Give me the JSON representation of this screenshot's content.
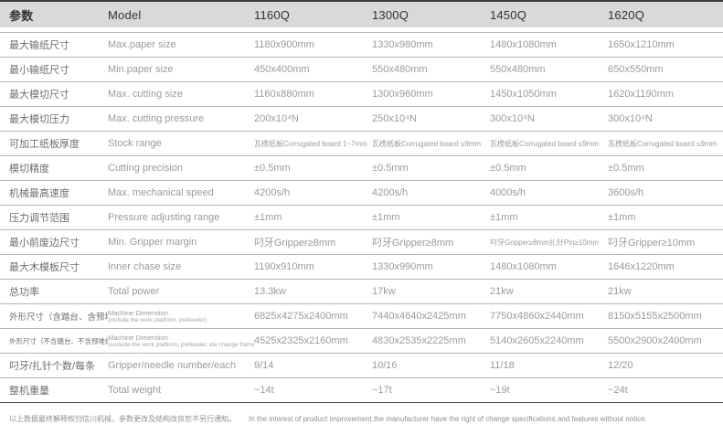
{
  "table": {
    "header": [
      "参数",
      "Model",
      "1160Q",
      "1300Q",
      "1450Q",
      "1620Q"
    ],
    "rows": [
      {
        "param": "最大输纸尺寸",
        "model": "Max.paper size",
        "values": [
          "1180x900mm",
          "1330x980mm",
          "1480x1080mm",
          "1650x1210mm"
        ]
      },
      {
        "param": "最小输纸尺寸",
        "model": "Min.paper size",
        "values": [
          "450x400mm",
          "550x480mm",
          "550x480mm",
          "650x550mm"
        ]
      },
      {
        "param": "最大模切尺寸",
        "model": "Max. cutting size",
        "values": [
          "1160x880mm",
          "1300x960mm",
          "1450x1050mm",
          "1620x1190mm"
        ]
      },
      {
        "param": "最大模切压力",
        "model": "Max. cutting pressure",
        "values": [
          "200x10⁴N",
          "250x10⁴N",
          "300x10⁴N",
          "300x10⁴N"
        ]
      },
      {
        "param": "可加工纸板厚度",
        "model": "Stock range",
        "values": [
          "瓦楞纸板Corrugated board 1~7mm",
          "瓦楞纸板Corrugated board ≤9mm",
          "瓦楞纸板Corrugated board ≤9mm",
          "瓦楞纸板Corrugated board ≤9mm"
        ]
      },
      {
        "param": "模切精度",
        "model": "Cutting precision",
        "values": [
          "±0.5mm",
          "±0.5mm",
          "±0.5mm",
          "±0.5mm"
        ]
      },
      {
        "param": "机械最高速度",
        "model": "Max. mechanical speed",
        "values": [
          "4200s/h",
          "4200s/h",
          "4000s/h",
          "3600s/h"
        ]
      },
      {
        "param": "压力调节范围",
        "model": "Pressure adjusting range",
        "values": [
          "±1mm",
          "±1mm",
          "±1mm",
          "±1mm"
        ]
      },
      {
        "param": "最小前废边尺寸",
        "model": "Min. Gripper margin",
        "values": [
          "叼牙Gripper≥8mm",
          "叼牙Gripper≥8mm",
          "叼牙Gripper≥8mm扎针Pin≥10mm",
          "叼牙Gripper≥10mm"
        ]
      },
      {
        "param": "最大木模板尺寸",
        "model": "Inner chase size",
        "values": [
          "1190x910mm",
          "1330x990mm",
          "1480x1080mm",
          "1646x1220mm"
        ]
      },
      {
        "param": "总功率",
        "model": "Total power",
        "values": [
          "13.3kw",
          "17kw",
          "21kw",
          "21kw"
        ]
      },
      {
        "param": "外形尺寸（含踏台、含预堆纸）",
        "model": "Machine Dimension",
        "model_sub": "(include the work platform, prefeeder)",
        "values": [
          "6825x4275x2400mm",
          "7440x4640x2425mm",
          "7750x4860x2440mm",
          "8150x5155x2500mm"
        ]
      },
      {
        "param": "外形尺寸（不含踏台、不含预堆纸、不含模版架）",
        "model": "Machine Dimension",
        "model_sub": "(exclude the work platform, prefeeder, die change frame)",
        "values": [
          "4525x2325x2160mm",
          "4830x2535x2225mm",
          "5140x2605x2240mm",
          "5500x2900x2400mm"
        ]
      },
      {
        "param": "叼牙/扎针个数/每条",
        "model": "Gripper/needle number/each",
        "values": [
          "9/14",
          "10/16",
          "11/18",
          "12/20"
        ]
      },
      {
        "param": "整机重量",
        "model": "Total weight",
        "values": [
          "~14t",
          "~17t",
          "~19t",
          "~24t"
        ]
      }
    ]
  },
  "footer": {
    "note_cn": "以上数据最终解释权归信川机械，参数更改及结构改良恕不另行通知。",
    "note_en": "In the interest of product improvement,the manufacturer have the right of change specifications and features without notice."
  },
  "colors": {
    "header_bg": "#d9d9d9",
    "border_dark": "#3f3f3f",
    "border_light": "#b5b5b5",
    "header_text": "#323232",
    "param_text": "#6e6e6e",
    "value_text": "#9b9b9b"
  }
}
